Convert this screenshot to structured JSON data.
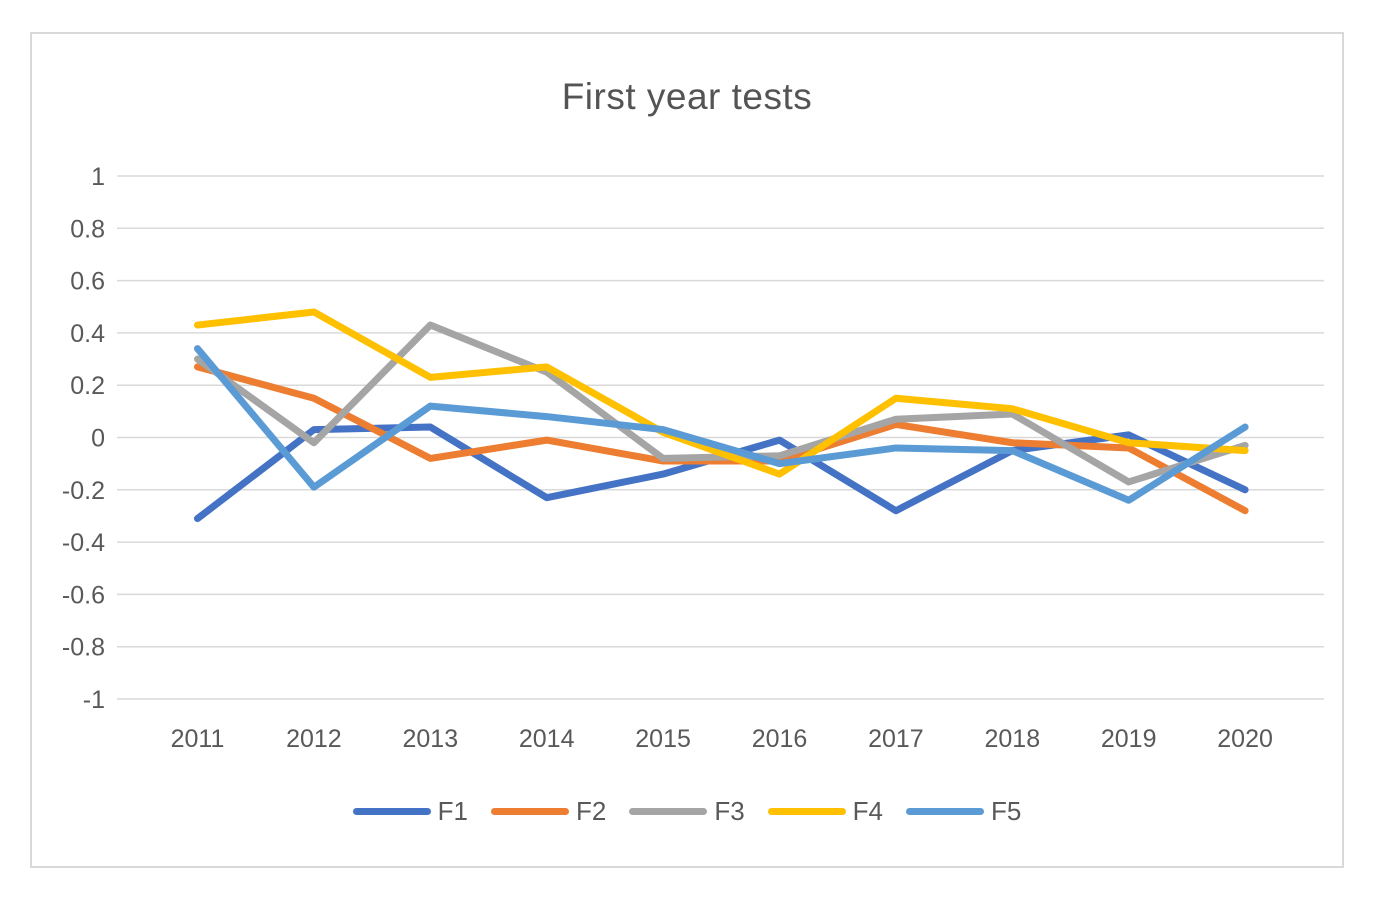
{
  "chart_data": {
    "type": "line",
    "title": "First year tests",
    "categories": [
      "2011",
      "2012",
      "2013",
      "2014",
      "2015",
      "2016",
      "2017",
      "2018",
      "2019",
      "2020"
    ],
    "series": [
      {
        "name": "F1",
        "color": "#4472C4",
        "values": [
          -0.31,
          0.03,
          0.04,
          -0.23,
          -0.14,
          -0.01,
          -0.28,
          -0.05,
          0.01,
          -0.2
        ]
      },
      {
        "name": "F2",
        "color": "#ED7D31",
        "values": [
          0.27,
          0.15,
          -0.08,
          -0.01,
          -0.09,
          -0.09,
          0.05,
          -0.02,
          -0.04,
          -0.28
        ]
      },
      {
        "name": "F3",
        "color": "#A5A5A5",
        "values": [
          0.3,
          -0.02,
          0.43,
          0.25,
          -0.08,
          -0.07,
          0.07,
          0.09,
          -0.17,
          -0.03
        ]
      },
      {
        "name": "F4",
        "color": "#FFC000",
        "values": [
          0.43,
          0.48,
          0.23,
          0.27,
          0.02,
          -0.14,
          0.15,
          0.11,
          -0.02,
          -0.05
        ]
      },
      {
        "name": "F5",
        "color": "#5B9BD5",
        "values": [
          0.34,
          -0.19,
          0.12,
          0.08,
          0.03,
          -0.1,
          -0.04,
          -0.05,
          -0.24,
          0.04
        ]
      }
    ],
    "ylim": [
      -1,
      1
    ],
    "y_tick_labels": [
      "1",
      "0.8",
      "0.6",
      "0.4",
      "0.2",
      "0",
      "-0.2",
      "-0.4",
      "-0.6",
      "-0.8",
      "-1"
    ],
    "xlabel": "",
    "ylabel": "",
    "grid": "horizontal gridlines on",
    "legend_position": "bottom"
  },
  "theme": {
    "gridline_color": "#D9D9D9",
    "frame_border_color": "#D9D9D9",
    "tick_label_color": "#595959",
    "title_color": "#545454",
    "background_color": "#FFFFFF"
  }
}
